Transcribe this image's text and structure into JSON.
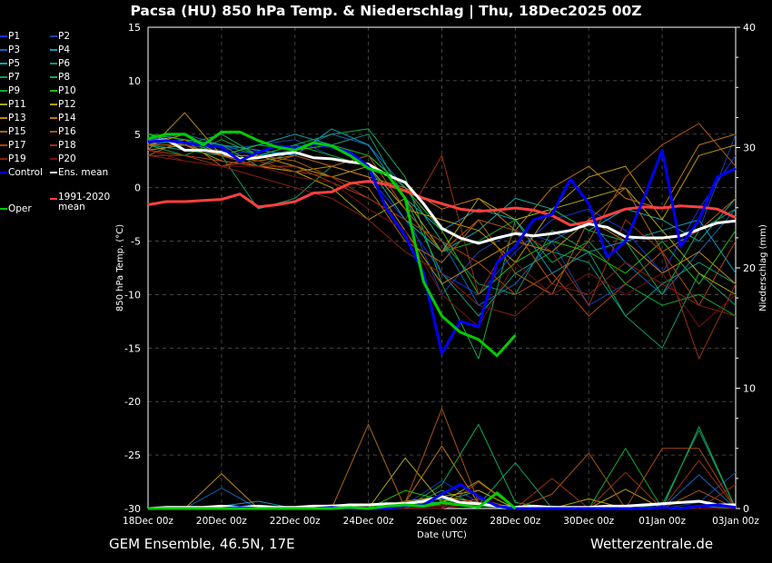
{
  "title": "Pacsa  (HU)  850 hPa Temp. & Niederschlag | Thu, 18Dec2025 00Z",
  "footer": {
    "model": "GEM Ensemble, 46.5N, 17E",
    "site": "Wetterzentrale.de"
  },
  "chart_data": {
    "type": "line",
    "xlabel": "Date (UTC)",
    "ylabel": "850 hPa Temp. (°C)",
    "y2label": "Niederschlag (mm)",
    "ylim": [
      -30,
      15
    ],
    "y2lim": [
      0,
      40
    ],
    "yticks": [
      "15",
      "10",
      "5",
      "0",
      "-5",
      "-10",
      "-15",
      "-20",
      "-25",
      "-30"
    ],
    "y2ticks": [
      "40",
      "30",
      "20",
      "10",
      "0"
    ],
    "xticks": [
      "18Dec 00z",
      "20Dec 00z",
      "22Dec 00z",
      "24Dec 00z",
      "26Dec 00z",
      "28Dec 00z",
      "30Dec 00z",
      "01Jan 00z",
      "03Jan 00z"
    ],
    "grid": true,
    "legend_placement": "left-outside",
    "x_12h": [
      "18Dec 00z",
      "18Dec 12z",
      "19Dec 00z",
      "19Dec 12z",
      "20Dec 00z",
      "20Dec 12z",
      "21Dec 00z",
      "21Dec 12z",
      "22Dec 00z",
      "22Dec 12z",
      "23Dec 00z",
      "23Dec 12z",
      "24Dec 00z",
      "24Dec 12z",
      "25Dec 00z",
      "25Dec 12z",
      "26Dec 00z",
      "26Dec 12z",
      "27Dec 00z",
      "27Dec 12z",
      "28Dec 00z",
      "28Dec 12z",
      "29Dec 00z",
      "29Dec 12z",
      "30Dec 00z",
      "30Dec 12z",
      "31Dec 00z",
      "31Dec 12z",
      "01Jan 00z",
      "01Jan 12z",
      "02Jan 00z",
      "02Jan 12z",
      "03Jan 00z"
    ],
    "x_daily": [
      "18Dec",
      "19Dec",
      "20Dec",
      "21Dec",
      "22Dec",
      "23Dec",
      "24Dec",
      "25Dec",
      "26Dec",
      "27Dec",
      "28Dec",
      "29Dec",
      "30Dec",
      "31Dec",
      "01Jan",
      "02Jan",
      "03Jan"
    ],
    "main_series": [
      {
        "name": "Control",
        "color": "#0000ff",
        "temp": [
          4.3,
          4.4,
          4.2,
          4.0,
          3.8,
          2.5,
          3.3,
          3.9,
          3.7,
          4.1,
          3.8,
          3.3,
          2.0,
          -2.0,
          -4.5,
          -8,
          -15.5,
          -12.5,
          -13,
          -7,
          -5.5,
          -3,
          -2.5,
          0.8,
          -1.5,
          -6.5,
          -5,
          -1,
          3.5,
          -5.5,
          -3,
          1,
          1.8
        ],
        "precip": [
          0,
          0,
          0,
          0,
          0,
          0.1,
          0,
          0,
          0,
          0,
          0.1,
          0,
          0,
          0,
          0.2,
          0.3,
          1.2,
          2.0,
          1.0,
          0.2,
          0,
          0,
          0,
          0,
          0,
          0,
          0,
          0,
          0.1,
          0,
          0.2,
          0.3,
          0.1
        ]
      },
      {
        "name": "Oper",
        "color": "#00cc00",
        "temp": [
          4.6,
          5.0,
          5.0,
          4.0,
          5.2,
          5.2,
          4.4,
          3.8,
          3.5,
          4.2,
          3.9,
          3.0,
          1.8,
          1.3,
          -1.0,
          -8.8,
          -12.0,
          -13.5,
          -14.2,
          -15.7,
          -13.8
        ],
        "precip": [
          0,
          0,
          0,
          0,
          0,
          0,
          0,
          0,
          0,
          0,
          0,
          0.1,
          0,
          0.2,
          0.3,
          0.2,
          0.5,
          0.3,
          0.1,
          1.3,
          0
        ]
      },
      {
        "name": "Ens. mean",
        "color": "#ffffff",
        "temp": [
          4.3,
          4.5,
          3.5,
          3.5,
          3.3,
          2.7,
          2.8,
          3.1,
          3.3,
          2.8,
          2.7,
          2.4,
          2.2,
          1.2,
          0.5,
          -1.5,
          -3.8,
          -4.7,
          -5.2,
          -4.7,
          -4.3,
          -4.5,
          -4.3,
          -4.0,
          -3.4,
          -3.7,
          -4.6,
          -4.7,
          -4.7,
          -4.5,
          -3.9,
          -3.3,
          -3.1
        ],
        "precip": [
          0,
          0.1,
          0.1,
          0.1,
          0.2,
          0.1,
          0.2,
          0.1,
          0.1,
          0.2,
          0.2,
          0.3,
          0.3,
          0.4,
          0.4,
          0.6,
          1.0,
          0.5,
          0.4,
          0.2,
          0.1,
          0.2,
          0.1,
          0.1,
          0.1,
          0.2,
          0.2,
          0.3,
          0.4,
          0.5,
          0.6,
          0.3,
          0.3
        ]
      },
      {
        "name": "1991-2020 mean",
        "color": "#ff4040",
        "temp": [
          -1.6,
          -1.3,
          -1.3,
          -1.2,
          -1.1,
          -0.6,
          -1.8,
          -1.6,
          -1.3,
          -0.5,
          -0.4,
          0.4,
          0.6,
          0.3,
          -0.3,
          -1.0,
          -1.5,
          -2.0,
          -2.2,
          -2.1,
          -1.9,
          -2.1,
          -2.6,
          -3.5,
          -3.2,
          -2.6,
          -2.0,
          -1.8,
          -1.9,
          -1.7,
          -1.8,
          -2.0,
          -2.8
        ]
      }
    ],
    "members": [
      {
        "name": "P1",
        "color": "#1133dd",
        "temp": [
          4,
          3.5,
          3,
          3.5,
          3,
          2,
          1,
          -3,
          -8,
          -10,
          -6,
          -3,
          -2,
          -4,
          -8,
          -2,
          3
        ],
        "precip": [
          0,
          0,
          0,
          0,
          0,
          0,
          0,
          0.5,
          1,
          0.5,
          0,
          0,
          0,
          0,
          0,
          0,
          0
        ]
      },
      {
        "name": "P2",
        "color": "#1144aa",
        "temp": [
          5,
          4,
          3.5,
          4,
          4.5,
          3,
          2,
          -2,
          -10,
          -6,
          -4,
          -5,
          -11,
          -9,
          -6,
          -4,
          5
        ],
        "precip": [
          0,
          0,
          0,
          0,
          0,
          0,
          0,
          0.3,
          2.3,
          0.5,
          0,
          0,
          0,
          0,
          0,
          0.5,
          3
        ]
      },
      {
        "name": "P3",
        "color": "#1166bb",
        "temp": [
          4.5,
          5,
          4,
          3,
          3.5,
          5,
          4,
          0,
          -5,
          -11,
          -9,
          -5,
          -3,
          -7,
          -10,
          -6,
          -2
        ],
        "precip": [
          0,
          0,
          1.7,
          0,
          0,
          0,
          0,
          0.5,
          0.8,
          0.2,
          0,
          0,
          0,
          0,
          0,
          2.8,
          0
        ]
      },
      {
        "name": "P4",
        "color": "#1199bb",
        "temp": [
          4,
          4.5,
          4,
          3.5,
          3,
          5.5,
          4,
          -1,
          -4,
          -2,
          -3,
          -8,
          -6,
          -5,
          -4,
          -3,
          -8
        ],
        "precip": [
          0,
          0,
          0.2,
          0.6,
          0,
          0,
          0,
          0.6,
          0.5,
          0.3,
          0,
          0.2,
          0,
          0,
          0,
          0,
          0
        ]
      },
      {
        "name": "P5",
        "color": "#11aaaa",
        "temp": [
          5,
          4,
          3,
          4,
          5,
          4,
          2,
          -3,
          -6,
          -4,
          -1,
          -2,
          -4,
          -2,
          -3,
          -5,
          -1
        ],
        "precip": [
          0,
          0,
          0,
          0,
          0,
          0,
          0,
          0.4,
          0.3,
          0.8,
          0,
          0,
          0,
          0,
          0,
          0,
          0
        ]
      },
      {
        "name": "P6",
        "color": "#119977",
        "temp": [
          5,
          4.5,
          4,
          2,
          3.5,
          4,
          5,
          -1,
          -8,
          -12,
          -8,
          -6,
          -7,
          -12,
          -9,
          -7,
          -9
        ],
        "precip": [
          0,
          0,
          0,
          0,
          0,
          0,
          0,
          0.2,
          0.5,
          1.5,
          0,
          0.2,
          0,
          0,
          0,
          0,
          0
        ]
      },
      {
        "name": "P7",
        "color": "#119966",
        "temp": [
          4,
          3.5,
          3,
          -2,
          -1,
          2,
          3,
          0,
          -5,
          -9,
          -10,
          -4,
          -6,
          -12,
          -15,
          -8,
          -11
        ],
        "precip": [
          0,
          0,
          0,
          0,
          0,
          0,
          0,
          0,
          1.5,
          0.3,
          3.8,
          0,
          0,
          0,
          0.3,
          6.5,
          0
        ]
      },
      {
        "name": "P8",
        "color": "#11aa55",
        "temp": [
          4.5,
          4,
          5,
          3,
          4,
          5,
          5.5,
          1,
          -9,
          -16,
          -3,
          -2,
          -4,
          -5,
          -10,
          -4,
          -2
        ],
        "precip": [
          0,
          0,
          0,
          0,
          0,
          0,
          0,
          0,
          2,
          7.0,
          0.5,
          0,
          0,
          0,
          0,
          6.8,
          0
        ]
      },
      {
        "name": "P9",
        "color": "#11aa33",
        "temp": [
          4,
          3,
          4.5,
          3,
          4,
          3,
          2,
          -2,
          -6,
          -5,
          -3,
          -7,
          -5,
          -9,
          -11,
          -10,
          -12
        ],
        "precip": [
          0,
          0,
          0,
          0,
          0,
          0,
          0,
          0.3,
          0.5,
          0.2,
          0,
          0,
          0,
          5.0,
          0,
          0.2,
          0
        ]
      },
      {
        "name": "P10",
        "color": "#22bb11",
        "temp": [
          5,
          4.5,
          3,
          4,
          3.5,
          4,
          3,
          0,
          -4,
          -10,
          -7,
          -5,
          -6,
          -8,
          -5,
          -9,
          -4
        ],
        "precip": [
          0,
          0,
          0,
          0,
          0,
          0,
          0,
          1.5,
          0.7,
          0.3,
          0,
          0,
          0,
          0,
          0,
          0,
          0
        ]
      },
      {
        "name": "P11",
        "color": "#aaaa11",
        "temp": [
          3.5,
          4,
          2.5,
          2,
          1.5,
          0,
          -3,
          -1,
          -6,
          -1,
          -3,
          -2,
          -1,
          0,
          -4,
          -8,
          -10
        ],
        "precip": [
          0,
          0,
          0,
          0,
          0,
          0,
          0,
          4.2,
          0.5,
          2.3,
          0,
          0,
          0.8,
          0,
          0,
          0,
          0
        ]
      },
      {
        "name": "P12",
        "color": "#bb9911",
        "temp": [
          4,
          5,
          3,
          3,
          2,
          1,
          2,
          -2,
          -3,
          -4,
          -7,
          -2,
          1,
          2,
          -3,
          3,
          4
        ],
        "precip": [
          0,
          0,
          0,
          0,
          0,
          0,
          0,
          0.6,
          1,
          1.5,
          0,
          0,
          0,
          1.6,
          0,
          0,
          0
        ]
      },
      {
        "name": "P13",
        "color": "#bb8811",
        "temp": [
          3.5,
          7,
          3,
          2,
          1.5,
          2,
          1,
          -4,
          -9,
          -7,
          -5,
          -6,
          -3,
          -5,
          -8,
          -6,
          -9
        ],
        "precip": [
          0,
          0,
          2.9,
          0,
          0,
          0.3,
          0,
          0,
          1,
          0.5,
          0,
          0,
          0,
          0,
          0,
          0,
          0
        ]
      },
      {
        "name": "P14",
        "color": "#bb7711",
        "temp": [
          4,
          4,
          3,
          2.5,
          3,
          2,
          1,
          0,
          -2,
          -1,
          -4,
          0,
          2,
          -1,
          -2,
          4,
          5
        ],
        "precip": [
          0,
          0,
          0,
          0,
          0,
          0.2,
          0,
          0.5,
          5.2,
          0.4,
          0,
          0,
          0,
          0,
          0,
          0,
          0
        ]
      },
      {
        "name": "P15",
        "color": "#aa6611",
        "temp": [
          3,
          4.5,
          2,
          3,
          2.5,
          1,
          0,
          -5,
          -7,
          -3,
          -8,
          -10,
          -3,
          0,
          -6,
          -4,
          -1
        ],
        "precip": [
          0,
          0,
          0,
          0,
          0,
          0,
          7,
          0,
          0,
          0.5,
          0,
          0,
          0,
          0,
          0,
          0,
          2
        ]
      },
      {
        "name": "P16",
        "color": "#aa5511",
        "temp": [
          4,
          4,
          3,
          2,
          3,
          2,
          3,
          -2,
          -6,
          -3,
          -4,
          -9,
          -5,
          1,
          4,
          6,
          2
        ],
        "precip": [
          0,
          0,
          0,
          0,
          0,
          0,
          0,
          0.5,
          8.3,
          0.5,
          0,
          1.2,
          4.6,
          0,
          0,
          1.5,
          0
        ]
      },
      {
        "name": "P17",
        "color": "#aa4411",
        "temp": [
          3.5,
          3,
          2.5,
          2,
          2,
          0.5,
          -1,
          -3,
          -5,
          -7,
          -10,
          -8,
          -12,
          -9,
          -6,
          -11,
          -5
        ],
        "precip": [
          0,
          0,
          0,
          0,
          0,
          0,
          0,
          0,
          0,
          2.2,
          0,
          0,
          0,
          0,
          5,
          5,
          0
        ]
      },
      {
        "name": "P18",
        "color": "#993311",
        "temp": [
          3,
          3,
          2,
          2.5,
          1.5,
          1,
          -1,
          -3,
          3,
          -10,
          -4,
          -6,
          -11,
          -3,
          -6,
          -16,
          -9
        ],
        "precip": [
          0,
          0,
          0,
          0,
          0,
          0,
          0,
          0,
          0.3,
          0.8,
          0,
          2.5,
          0,
          3,
          0,
          4,
          0
        ]
      },
      {
        "name": "P19",
        "color": "#882211",
        "temp": [
          3,
          2.5,
          2,
          1,
          0,
          -1,
          -3,
          -6,
          -8,
          -11,
          -12,
          -9,
          -10,
          -7,
          -9,
          -11,
          -12
        ],
        "precip": [
          0,
          0,
          0,
          0,
          0,
          0,
          0,
          0,
          0,
          0.5,
          0,
          0,
          0,
          0,
          0,
          0,
          2
        ]
      },
      {
        "name": "P20",
        "color": "#771111",
        "temp": [
          3.5,
          2.5,
          2,
          2,
          1,
          0.5,
          -2,
          -4,
          -10,
          -13,
          -7,
          -10,
          -8,
          -10,
          -8,
          -13,
          -10
        ],
        "precip": [
          0,
          0,
          0,
          0,
          0,
          0,
          0,
          0,
          0.2,
          0.3,
          0,
          0,
          0,
          0,
          0,
          0,
          0
        ]
      }
    ]
  }
}
